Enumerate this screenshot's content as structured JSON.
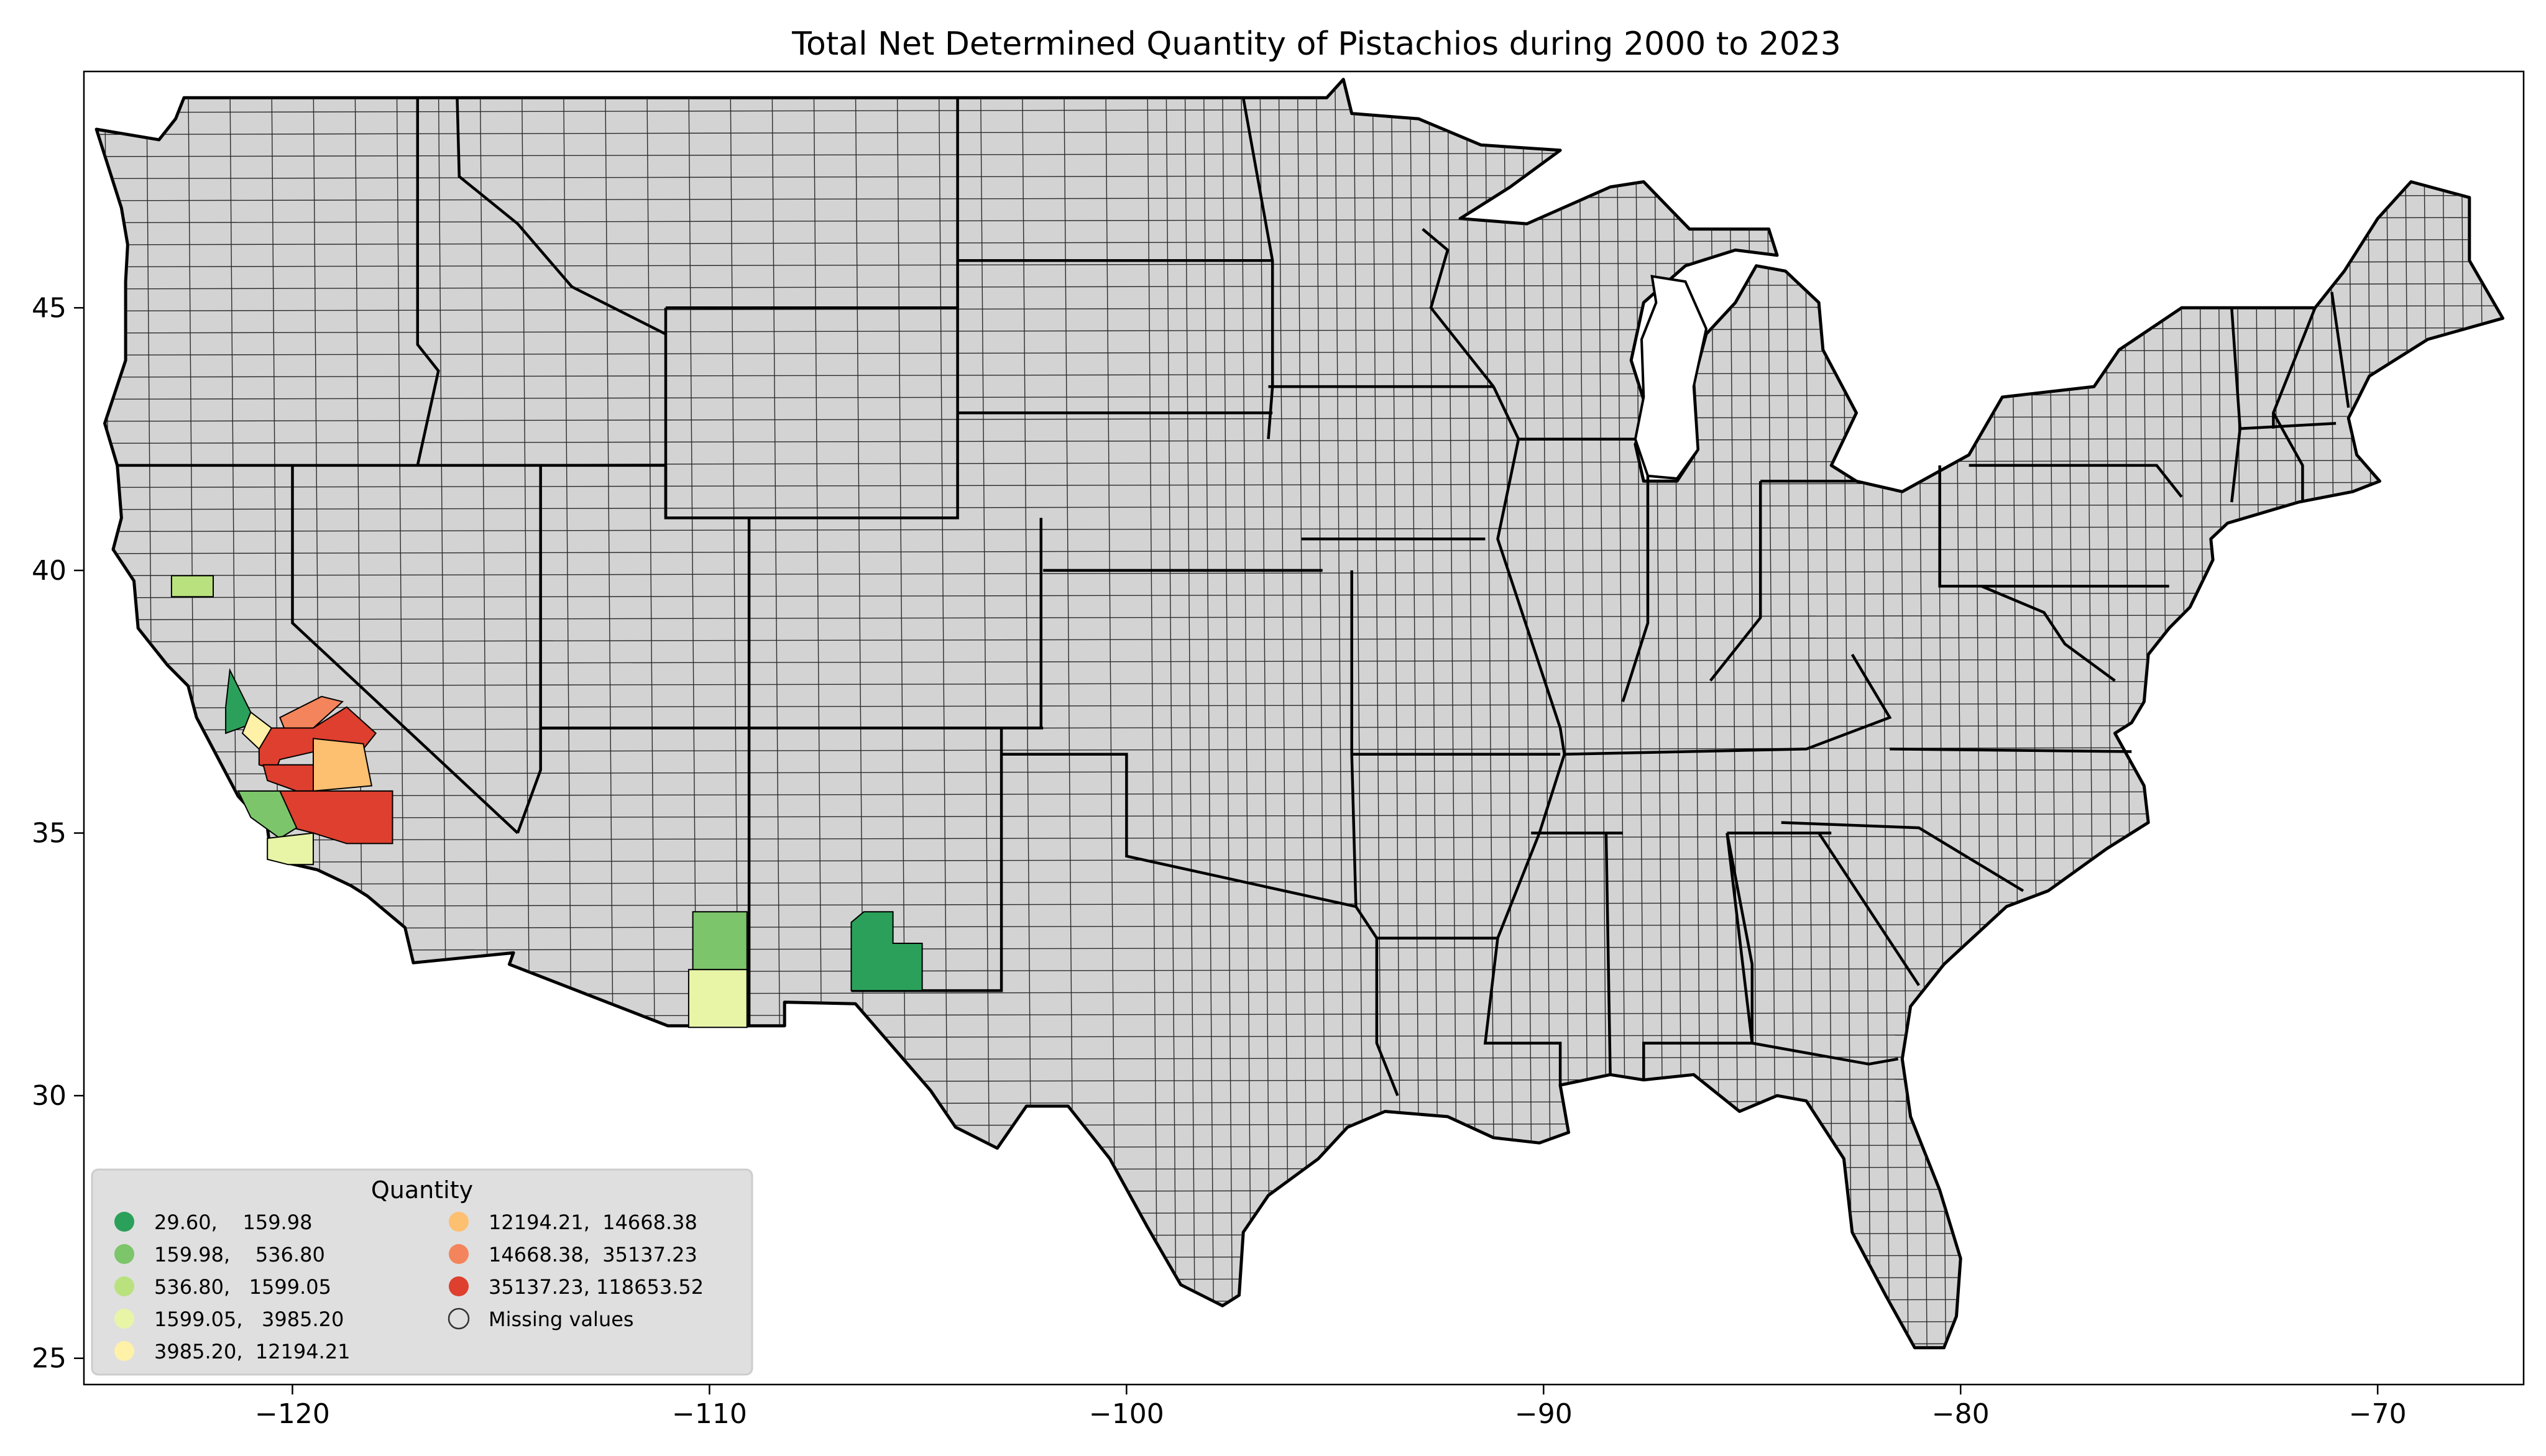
{
  "title": "Total Net Determined Quantity of Pistachios during 2000 to 2023",
  "axes": {
    "x_range": [
      -125,
      -66.5
    ],
    "y_range": [
      24.5,
      49.5
    ],
    "x_ticks": [
      {
        "value": -120,
        "label": "−120"
      },
      {
        "value": -110,
        "label": "−110"
      },
      {
        "value": -100,
        "label": "−100"
      },
      {
        "value": -90,
        "label": "−90"
      },
      {
        "value": -80,
        "label": "−80"
      },
      {
        "value": -70,
        "label": "−70"
      }
    ],
    "y_ticks": [
      {
        "value": 25,
        "label": "25"
      },
      {
        "value": 30,
        "label": "30"
      },
      {
        "value": 35,
        "label": "35"
      },
      {
        "value": 40,
        "label": "40"
      },
      {
        "value": 45,
        "label": "45"
      }
    ]
  },
  "colors": {
    "background": "#d3d3d3",
    "border": "#000000",
    "missing": "#d3d3d3"
  },
  "legend": {
    "title": "Quantity",
    "placement": "lower-left",
    "entries": [
      {
        "label": "29.60,    159.98",
        "color": "#2ba05a"
      },
      {
        "label": "159.98,    536.80",
        "color": "#7cc56a"
      },
      {
        "label": "536.80,   1599.05",
        "color": "#b9e27e"
      },
      {
        "label": "1599.05,   3985.20",
        "color": "#e8f5a7"
      },
      {
        "label": "3985.20,  12194.21",
        "color": "#fff1a8"
      },
      {
        "label": "12194.21,  14668.38",
        "color": "#fdbf70"
      },
      {
        "label": "14668.38,  35137.23",
        "color": "#f4845b"
      },
      {
        "label": "35137.23, 118653.52",
        "color": "#de3f2e"
      },
      {
        "label": "Missing values",
        "color": "missing"
      }
    ]
  },
  "chart_data": {
    "type": "choropleth",
    "title": "Total Net Determined Quantity of Pistachios during 2000 to 2023",
    "legend_title": "Quantity",
    "bins": [
      [
        29.6,
        159.98
      ],
      [
        159.98,
        536.8
      ],
      [
        536.8,
        1599.05
      ],
      [
        1599.05,
        3985.2
      ],
      [
        3985.2,
        12194.21
      ],
      [
        12194.21,
        14668.38
      ],
      [
        14668.38,
        35137.23
      ],
      [
        35137.23,
        118653.52
      ]
    ],
    "regions": [
      {
        "bin": 2,
        "ring": [
          [
            -122.9,
            39.9
          ],
          [
            -121.9,
            39.9
          ],
          [
            -121.9,
            39.5
          ],
          [
            -122.9,
            39.5
          ]
        ]
      },
      {
        "bin": 0,
        "ring": [
          [
            -121.5,
            38.1
          ],
          [
            -121.0,
            37.3
          ],
          [
            -120.9,
            37.1
          ],
          [
            -121.6,
            36.9
          ],
          [
            -121.6,
            37.4
          ]
        ]
      },
      {
        "bin": 4,
        "ring": [
          [
            -121.0,
            37.3
          ],
          [
            -120.5,
            37.0
          ],
          [
            -120.1,
            36.8
          ],
          [
            -120.8,
            36.6
          ],
          [
            -121.2,
            36.9
          ]
        ]
      },
      {
        "bin": 6,
        "ring": [
          [
            -120.3,
            37.2
          ],
          [
            -119.3,
            37.6
          ],
          [
            -118.8,
            37.5
          ],
          [
            -119.5,
            37.0
          ],
          [
            -120.1,
            36.8
          ]
        ]
      },
      {
        "bin": 7,
        "ring": [
          [
            -120.5,
            37.0
          ],
          [
            -119.5,
            37.0
          ],
          [
            -118.7,
            37.4
          ],
          [
            -118.0,
            36.9
          ],
          [
            -118.3,
            36.6
          ],
          [
            -119.2,
            36.6
          ],
          [
            -120.3,
            36.4
          ],
          [
            -120.4,
            36.2
          ],
          [
            -120.8,
            36.3
          ],
          [
            -120.8,
            36.6
          ]
        ]
      },
      {
        "bin": 7,
        "ring": [
          [
            -120.7,
            36.3
          ],
          [
            -119.5,
            36.3
          ],
          [
            -119.5,
            35.8
          ],
          [
            -119.9,
            35.8
          ],
          [
            -120.6,
            36.0
          ]
        ]
      },
      {
        "bin": 5,
        "ring": [
          [
            -119.5,
            36.8
          ],
          [
            -118.3,
            36.7
          ],
          [
            -118.1,
            35.9
          ],
          [
            -119.5,
            35.8
          ]
        ]
      },
      {
        "bin": 7,
        "ring": [
          [
            -120.3,
            35.8
          ],
          [
            -117.6,
            35.8
          ],
          [
            -117.6,
            34.8
          ],
          [
            -118.7,
            34.8
          ],
          [
            -119.5,
            35.0
          ],
          [
            -120.0,
            35.1
          ]
        ]
      },
      {
        "bin": 1,
        "ring": [
          [
            -121.3,
            35.8
          ],
          [
            -120.3,
            35.8
          ],
          [
            -119.9,
            35.1
          ],
          [
            -120.3,
            34.9
          ],
          [
            -121.0,
            35.3
          ]
        ]
      },
      {
        "bin": 3,
        "ring": [
          [
            -120.6,
            34.9
          ],
          [
            -119.5,
            35.0
          ],
          [
            -119.5,
            34.4
          ],
          [
            -120.1,
            34.4
          ],
          [
            -120.6,
            34.5
          ]
        ]
      },
      {
        "bin": 1,
        "ring": [
          [
            -110.4,
            33.5
          ],
          [
            -109.1,
            33.5
          ],
          [
            -109.1,
            32.4
          ],
          [
            -110.4,
            32.4
          ]
        ]
      },
      {
        "bin": 3,
        "ring": [
          [
            -110.5,
            32.4
          ],
          [
            -109.1,
            32.4
          ],
          [
            -109.1,
            31.3
          ],
          [
            -110.5,
            31.3
          ]
        ]
      },
      {
        "bin": 0,
        "ring": [
          [
            -106.3,
            33.5
          ],
          [
            -105.6,
            33.5
          ],
          [
            -105.6,
            32.9
          ],
          [
            -104.9,
            32.9
          ],
          [
            -104.9,
            32.0
          ],
          [
            -106.6,
            32.0
          ],
          [
            -106.6,
            33.3
          ]
        ]
      }
    ]
  }
}
